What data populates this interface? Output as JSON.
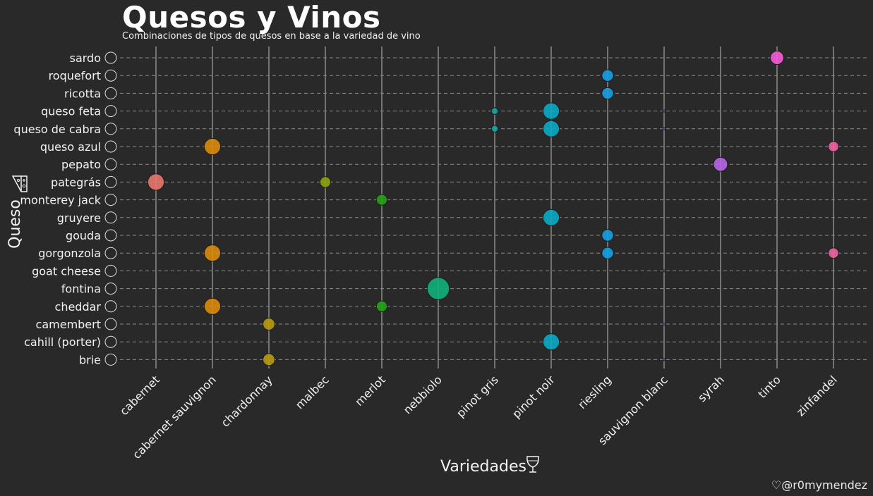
{
  "title": "Quesos y Vinos",
  "subtitle": "Combinaciones de tipos de quesos en base a la variedad de vino",
  "credit": "♡@r0mymendez",
  "chart_data": {
    "type": "scatter",
    "xlabel": "Variedades",
    "ylabel": "Queso",
    "xlabel_icon": "wine-glass-icon",
    "ylabel_icon": "cheese-icon",
    "y_tick_icon": "circle-outline-icon",
    "x_categories": [
      "cabernet",
      "cabernet sauvignon",
      "chardonnay",
      "malbec",
      "merlot",
      "nebbiolo",
      "pinot gris",
      "pinot noir",
      "riesling",
      "sauvignon blanc",
      "syrah",
      "tinto",
      "zinfandel"
    ],
    "y_categories": [
      "sardo",
      "roquefort",
      "ricotta",
      "queso feta",
      "queso de cabra",
      "queso azul",
      "pepato",
      "pategrás",
      "monterey jack",
      "gruyere",
      "gouda",
      "gorgonzola",
      "goat cheese",
      "fontina",
      "cheddar",
      "camembert",
      "cahill (porter)",
      "brie"
    ],
    "grid": true,
    "legend": "none",
    "colors": {
      "cabernet": "#e8756c",
      "cabernet sauvignon": "#d98a0c",
      "chardonnay": "#b89a10",
      "malbec": "#8ea10c",
      "merlot": "#25a314",
      "nebbiolo": "#0fb07a",
      "pinot gris": "#10a6a0",
      "pinot noir": "#0aa8c4",
      "riesling": "#159ee2",
      "sauvignon blanc": "#7b6cf0",
      "syrah": "#b565e6",
      "tinto": "#f35cd6",
      "zinfandel": "#ef63a2"
    },
    "points": [
      {
        "x": "tinto",
        "y": "sardo",
        "size": 2
      },
      {
        "x": "riesling",
        "y": "roquefort",
        "size": 1.5
      },
      {
        "x": "riesling",
        "y": "ricotta",
        "size": 1.5
      },
      {
        "x": "pinot gris",
        "y": "queso feta",
        "size": 0.5
      },
      {
        "x": "pinot noir",
        "y": "queso feta",
        "size": 3
      },
      {
        "x": "sauvignon blanc",
        "y": "queso feta",
        "size": 0.05
      },
      {
        "x": "pinot gris",
        "y": "queso de cabra",
        "size": 0.5
      },
      {
        "x": "pinot noir",
        "y": "queso de cabra",
        "size": 3
      },
      {
        "x": "sauvignon blanc",
        "y": "queso de cabra",
        "size": 0.05
      },
      {
        "x": "cabernet sauvignon",
        "y": "queso azul",
        "size": 3
      },
      {
        "x": "zinfandel",
        "y": "queso azul",
        "size": 1.2
      },
      {
        "x": "syrah",
        "y": "pepato",
        "size": 2.2
      },
      {
        "x": "cabernet",
        "y": "pategrás",
        "size": 3
      },
      {
        "x": "malbec",
        "y": "pategrás",
        "size": 1.3
      },
      {
        "x": "merlot",
        "y": "monterey jack",
        "size": 1.3
      },
      {
        "x": "pinot noir",
        "y": "gruyere",
        "size": 3
      },
      {
        "x": "riesling",
        "y": "gouda",
        "size": 1.5
      },
      {
        "x": "cabernet sauvignon",
        "y": "gorgonzola",
        "size": 3
      },
      {
        "x": "riesling",
        "y": "gorgonzola",
        "size": 1.5
      },
      {
        "x": "zinfandel",
        "y": "gorgonzola",
        "size": 1.2
      },
      {
        "x": "sauvignon blanc",
        "y": "goat cheese",
        "size": 0.05
      },
      {
        "x": "nebbiolo",
        "y": "fontina",
        "size": 5.5
      },
      {
        "x": "cabernet sauvignon",
        "y": "cheddar",
        "size": 3
      },
      {
        "x": "merlot",
        "y": "cheddar",
        "size": 1.3
      },
      {
        "x": "chardonnay",
        "y": "camembert",
        "size": 1.6
      },
      {
        "x": "sauvignon blanc",
        "y": "camembert",
        "size": 0.05
      },
      {
        "x": "pinot noir",
        "y": "cahill (porter)",
        "size": 3
      },
      {
        "x": "chardonnay",
        "y": "brie",
        "size": 1.6
      },
      {
        "x": "sauvignon blanc",
        "y": "brie",
        "size": 0.05
      }
    ]
  }
}
